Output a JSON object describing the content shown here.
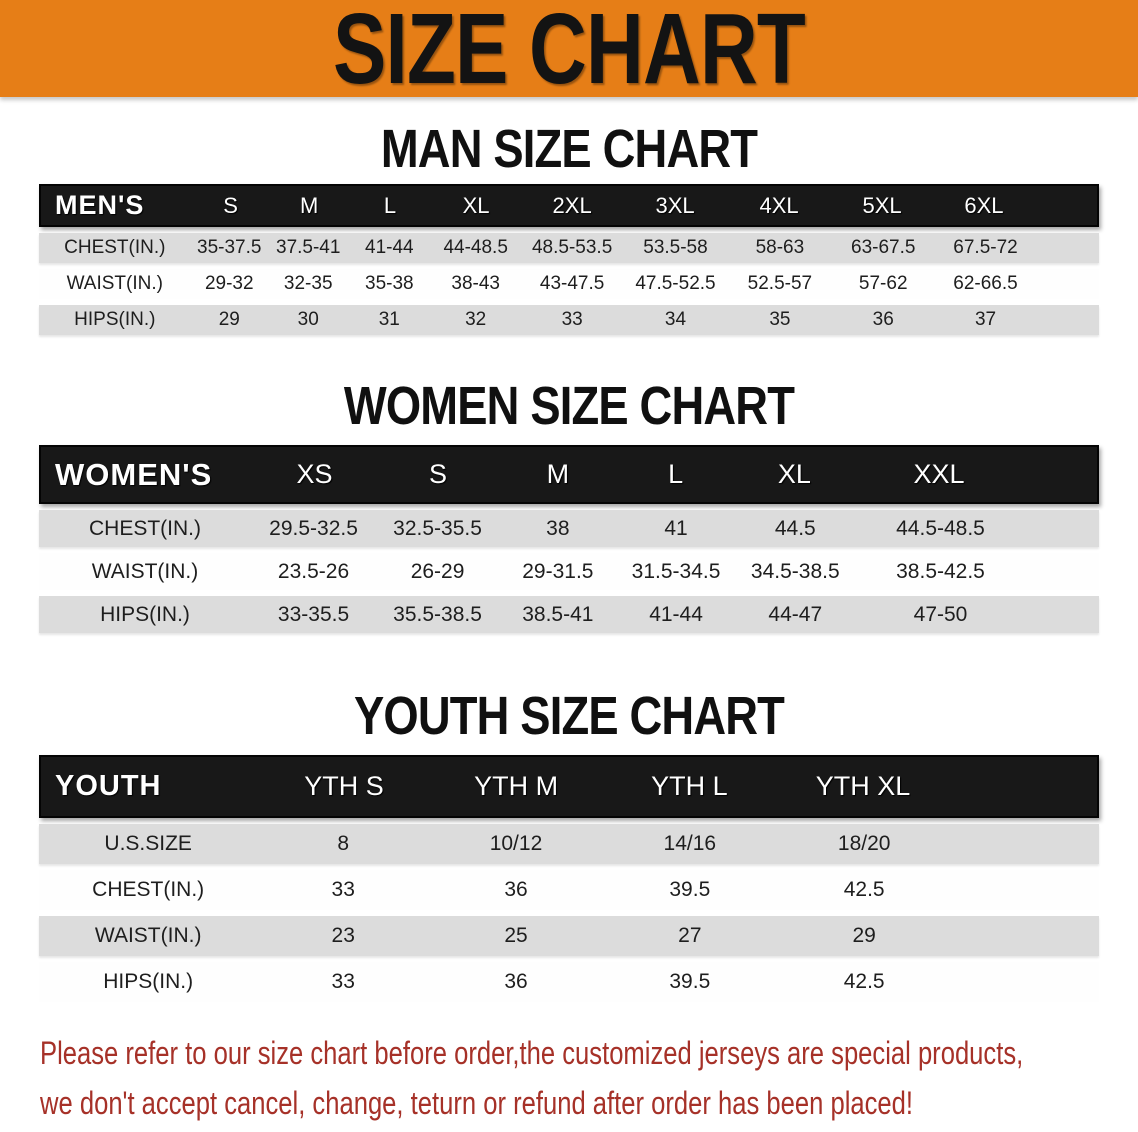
{
  "banner": {
    "title": "SIZE CHART",
    "bg_color": "#E67E17",
    "text_color": "#131313"
  },
  "men": {
    "heading": "MAN SIZE CHART",
    "table": {
      "header_label": "MEN'S",
      "columns": [
        "S",
        "M",
        "L",
        "XL",
        "2XL",
        "3XL",
        "4XL",
        "5XL",
        "6XL"
      ],
      "rows": [
        {
          "label": "CHEST(IN.)",
          "values": [
            "35-37.5",
            "37.5-41",
            "41-44",
            "44-48.5",
            "48.5-53.5",
            "53.5-58",
            "58-63",
            "63-67.5",
            "67.5-72"
          ]
        },
        {
          "label": "WAIST(IN.)",
          "values": [
            "29-32",
            "32-35",
            "35-38",
            "38-43",
            "43-47.5",
            "47.5-52.5",
            "52.5-57",
            "57-62",
            "62-66.5"
          ]
        },
        {
          "label": "HIPS(IN.)",
          "values": [
            "29",
            "30",
            "31",
            "32",
            "33",
            "34",
            "35",
            "36",
            "37"
          ]
        }
      ]
    }
  },
  "women": {
    "heading": "WOMEN SIZE CHART",
    "table": {
      "header_label": "WOMEN'S",
      "columns": [
        "XS",
        "S",
        "M",
        "L",
        "XL",
        "XXL"
      ],
      "rows": [
        {
          "label": "CHEST(IN.)",
          "values": [
            "29.5-32.5",
            "32.5-35.5",
            "38",
            "41",
            "44.5",
            "44.5-48.5"
          ]
        },
        {
          "label": "WAIST(IN.)",
          "values": [
            "23.5-26",
            "26-29",
            "29-31.5",
            "31.5-34.5",
            "34.5-38.5",
            "38.5-42.5"
          ]
        },
        {
          "label": "HIPS(IN.)",
          "values": [
            "33-35.5",
            "35.5-38.5",
            "38.5-41",
            "41-44",
            "44-47",
            "47-50"
          ]
        }
      ]
    }
  },
  "youth": {
    "heading": "YOUTH SIZE CHART",
    "table": {
      "header_label": "YOUTH",
      "columns": [
        "YTH S",
        "YTH M",
        "YTH L",
        "YTH XL"
      ],
      "rows": [
        {
          "label": "U.S.SIZE",
          "values": [
            "8",
            "10/12",
            "14/16",
            "18/20"
          ]
        },
        {
          "label": "CHEST(IN.)",
          "values": [
            "33",
            "36",
            "39.5",
            "42.5"
          ]
        },
        {
          "label": "WAIST(IN.)",
          "values": [
            "23",
            "25",
            "27",
            "29"
          ]
        },
        {
          "label": "HIPS(IN.)",
          "values": [
            "33",
            "36",
            "39.5",
            "42.5"
          ]
        }
      ]
    }
  },
  "disclaimer": {
    "line1": "Please refer to our size chart before order,the customized jerseys are special products,",
    "line2": "we don't accept cancel, change, teturn or refund after order has been placed!",
    "color": "#A63128"
  }
}
